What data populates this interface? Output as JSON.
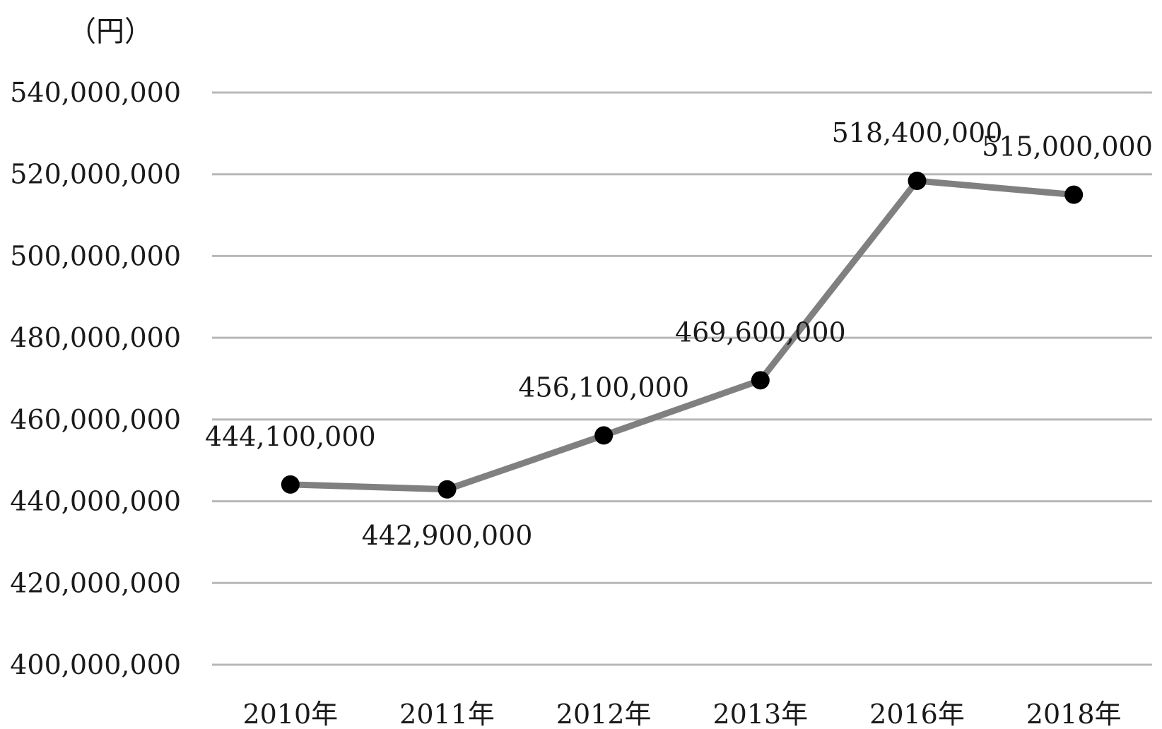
{
  "chart_data": {
    "type": "line",
    "unit_label": "（円）",
    "categories": [
      "2010年",
      "2011年",
      "2012年",
      "2013年",
      "2016年",
      "2018年"
    ],
    "series": [
      {
        "values": [
          444100000,
          442900000,
          456100000,
          469600000,
          518400000,
          515000000
        ]
      }
    ],
    "data_labels": [
      "444,100,000",
      "442,900,000",
      "456,100,000",
      "469,600,000",
      "518,400,000",
      "515,000,000"
    ],
    "y_ticks": [
      400000000,
      420000000,
      440000000,
      460000000,
      480000000,
      500000000,
      520000000,
      540000000
    ],
    "y_tick_labels": [
      "400,000,000",
      "420,000,000",
      "440,000,000",
      "460,000,000",
      "480,000,000",
      "500,000,000",
      "520,000,000",
      "540,000,000"
    ],
    "ylim": [
      400000000,
      540000000
    ],
    "grid": true,
    "legend": "none",
    "colors": {
      "line": "#808080",
      "marker": "#000000",
      "grid": "#b8b8b8",
      "text": "#1a1a1a"
    }
  }
}
